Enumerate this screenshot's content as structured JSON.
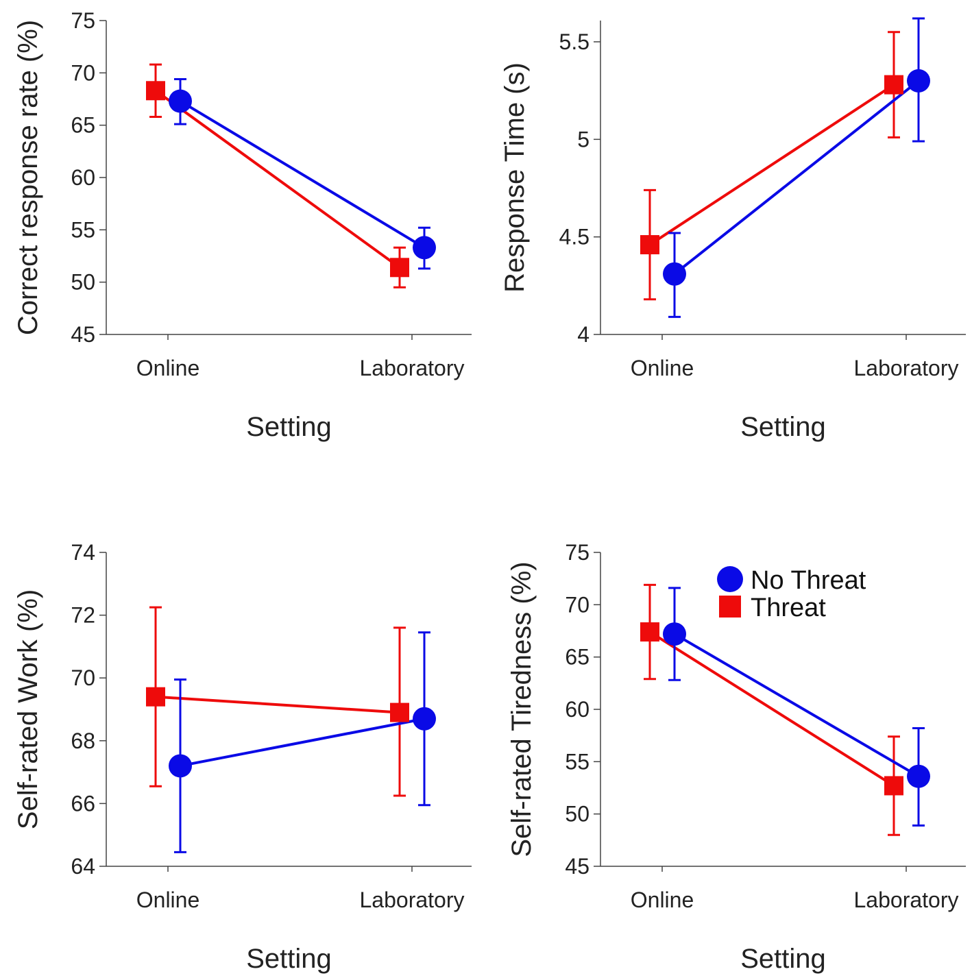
{
  "colors": {
    "no_threat": "#0a0ae6",
    "threat": "#ee0b0b",
    "axis": "#444444"
  },
  "legend": {
    "items": [
      {
        "label": "No Threat",
        "marker": "circle",
        "color_key": "no_threat"
      },
      {
        "label": "Threat",
        "marker": "square",
        "color_key": "threat"
      }
    ]
  },
  "chart_data": [
    {
      "type": "line",
      "xlabel": "Setting",
      "ylabel": "Correct response rate (%)",
      "categories": [
        "Online",
        "Laboratory"
      ],
      "ylim": [
        45,
        75
      ],
      "yticks": [
        45,
        50,
        55,
        60,
        65,
        70,
        75
      ],
      "ytick_labels": [
        "45",
        "50",
        "55",
        "60",
        "65",
        "70",
        "75"
      ],
      "series": [
        {
          "name": "Threat",
          "values": [
            68.3,
            51.4
          ],
          "err_low": [
            65.8,
            49.5
          ],
          "err_high": [
            70.8,
            53.3
          ]
        },
        {
          "name": "No Threat",
          "values": [
            67.3,
            53.3
          ],
          "err_low": [
            65.1,
            51.3
          ],
          "err_high": [
            69.4,
            55.2
          ]
        }
      ]
    },
    {
      "type": "line",
      "xlabel": "Setting",
      "ylabel": "Response Time (s)",
      "categories": [
        "Online",
        "Laboratory"
      ],
      "ylim": [
        4,
        5.6
      ],
      "yticks": [
        4,
        4.5,
        5,
        5.5
      ],
      "ytick_labels": [
        "4",
        "4.5",
        "5",
        "5.5"
      ],
      "series": [
        {
          "name": "Threat",
          "values": [
            4.46,
            5.28
          ],
          "err_low": [
            4.18,
            5.01
          ],
          "err_high": [
            4.74,
            5.55
          ]
        },
        {
          "name": "No Threat",
          "values": [
            4.31,
            5.3
          ],
          "err_low": [
            4.09,
            4.99
          ],
          "err_high": [
            4.52,
            5.62
          ]
        }
      ]
    },
    {
      "type": "line",
      "xlabel": "Setting",
      "ylabel": "Self-rated Work (%)",
      "categories": [
        "Online",
        "Laboratory"
      ],
      "ylim": [
        64,
        74
      ],
      "yticks": [
        64,
        66,
        68,
        70,
        72,
        74
      ],
      "ytick_labels": [
        "64",
        "66",
        "68",
        "70",
        "72",
        "74"
      ],
      "series": [
        {
          "name": "Threat",
          "values": [
            69.4,
            68.9
          ],
          "err_low": [
            66.55,
            66.25
          ],
          "err_high": [
            72.25,
            71.6
          ]
        },
        {
          "name": "No Threat",
          "values": [
            67.2,
            68.7
          ],
          "err_low": [
            64.45,
            65.95
          ],
          "err_high": [
            69.95,
            71.45
          ]
        }
      ]
    },
    {
      "type": "line",
      "xlabel": "Setting",
      "ylabel": "Self-rated Tiredness (%)",
      "categories": [
        "Online",
        "Laboratory"
      ],
      "ylim": [
        45,
        75
      ],
      "yticks": [
        45,
        50,
        55,
        60,
        65,
        70,
        75
      ],
      "ytick_labels": [
        "45",
        "50",
        "55",
        "60",
        "65",
        "70",
        "75"
      ],
      "legend": "top-right",
      "series": [
        {
          "name": "Threat",
          "values": [
            67.4,
            52.7
          ],
          "err_low": [
            62.9,
            48.0
          ],
          "err_high": [
            71.9,
            57.4
          ]
        },
        {
          "name": "No Threat",
          "values": [
            67.2,
            53.6
          ],
          "err_low": [
            62.8,
            48.9
          ],
          "err_high": [
            71.6,
            58.2
          ]
        }
      ]
    }
  ]
}
